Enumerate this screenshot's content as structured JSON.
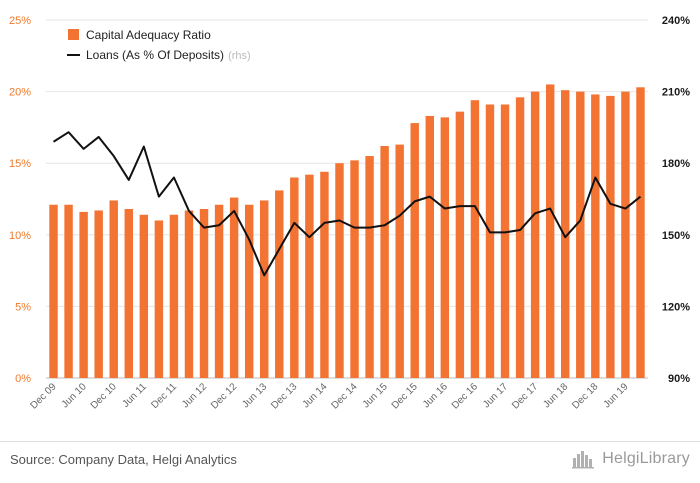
{
  "chart_data": {
    "type": "bar",
    "categories": [
      "Dec 09",
      "Mar 10",
      "Jun 10",
      "Sep 10",
      "Dec 10",
      "Mar 11",
      "Jun 11",
      "Sep 11",
      "Dec 11",
      "Mar 12",
      "Jun 12",
      "Sep 12",
      "Dec 12",
      "Mar 13",
      "Jun 13",
      "Sep 13",
      "Dec 13",
      "Mar 14",
      "Jun 14",
      "Sep 14",
      "Dec 14",
      "Mar 15",
      "Jun 15",
      "Sep 15",
      "Dec 15",
      "Mar 16",
      "Jun 16",
      "Sep 16",
      "Dec 16",
      "Mar 17",
      "Jun 17",
      "Sep 17",
      "Dec 17",
      "Mar 18",
      "Jun 18",
      "Sep 18",
      "Dec 18",
      "Mar 19",
      "Jun 19",
      "Sep 19"
    ],
    "x_tick_labels": [
      "Dec 09",
      "Jun 10",
      "Dec 10",
      "Jun 11",
      "Dec 11",
      "Jun 12",
      "Dec 12",
      "Jun 13",
      "Dec 13",
      "Jun 14",
      "Dec 14",
      "Jun 15",
      "Dec 15",
      "Jun 16",
      "Dec 16",
      "Jun 17",
      "Dec 17",
      "Jun 18",
      "Dec 18",
      "Jun 19"
    ],
    "series": [
      {
        "name": "Capital Adequacy Ratio",
        "type": "bar",
        "axis": "left",
        "color": "#f37332",
        "values": [
          12.1,
          12.1,
          11.6,
          11.7,
          12.4,
          11.8,
          11.4,
          11.0,
          11.4,
          11.7,
          11.8,
          12.1,
          12.6,
          12.1,
          12.4,
          13.1,
          14.0,
          14.2,
          14.4,
          15.0,
          15.2,
          15.5,
          16.2,
          16.3,
          17.8,
          18.3,
          18.2,
          18.6,
          19.4,
          19.1,
          19.1,
          19.6,
          20.0,
          20.5,
          20.1,
          20.0,
          19.8,
          19.7,
          20.0,
          20.3
        ]
      },
      {
        "name": "Loans (As % Of Deposits)",
        "note": "(rhs)",
        "type": "line",
        "axis": "right",
        "color": "#111111",
        "values": [
          189,
          193,
          186,
          191,
          183,
          173,
          187,
          166,
          174,
          160,
          153,
          154,
          160,
          148,
          133,
          144,
          155,
          149,
          155,
          156,
          153,
          153,
          154,
          158,
          164,
          166,
          161,
          162,
          162,
          151,
          151,
          152,
          159,
          161,
          149,
          156,
          174,
          163,
          161,
          166
        ]
      }
    ],
    "yleft": {
      "ylim": [
        0,
        25
      ],
      "ticks": [
        "0%",
        "5%",
        "10%",
        "15%",
        "20%",
        "25%"
      ]
    },
    "yright": {
      "ylim": [
        90,
        240
      ],
      "ticks": [
        "90%",
        "120%",
        "150%",
        "180%",
        "210%",
        "240%"
      ]
    },
    "legend_position": "top-left",
    "grid": "horizontal"
  },
  "footer": {
    "source": "Source: Company Data, Helgi Analytics",
    "brand": "HelgiLibrary"
  }
}
